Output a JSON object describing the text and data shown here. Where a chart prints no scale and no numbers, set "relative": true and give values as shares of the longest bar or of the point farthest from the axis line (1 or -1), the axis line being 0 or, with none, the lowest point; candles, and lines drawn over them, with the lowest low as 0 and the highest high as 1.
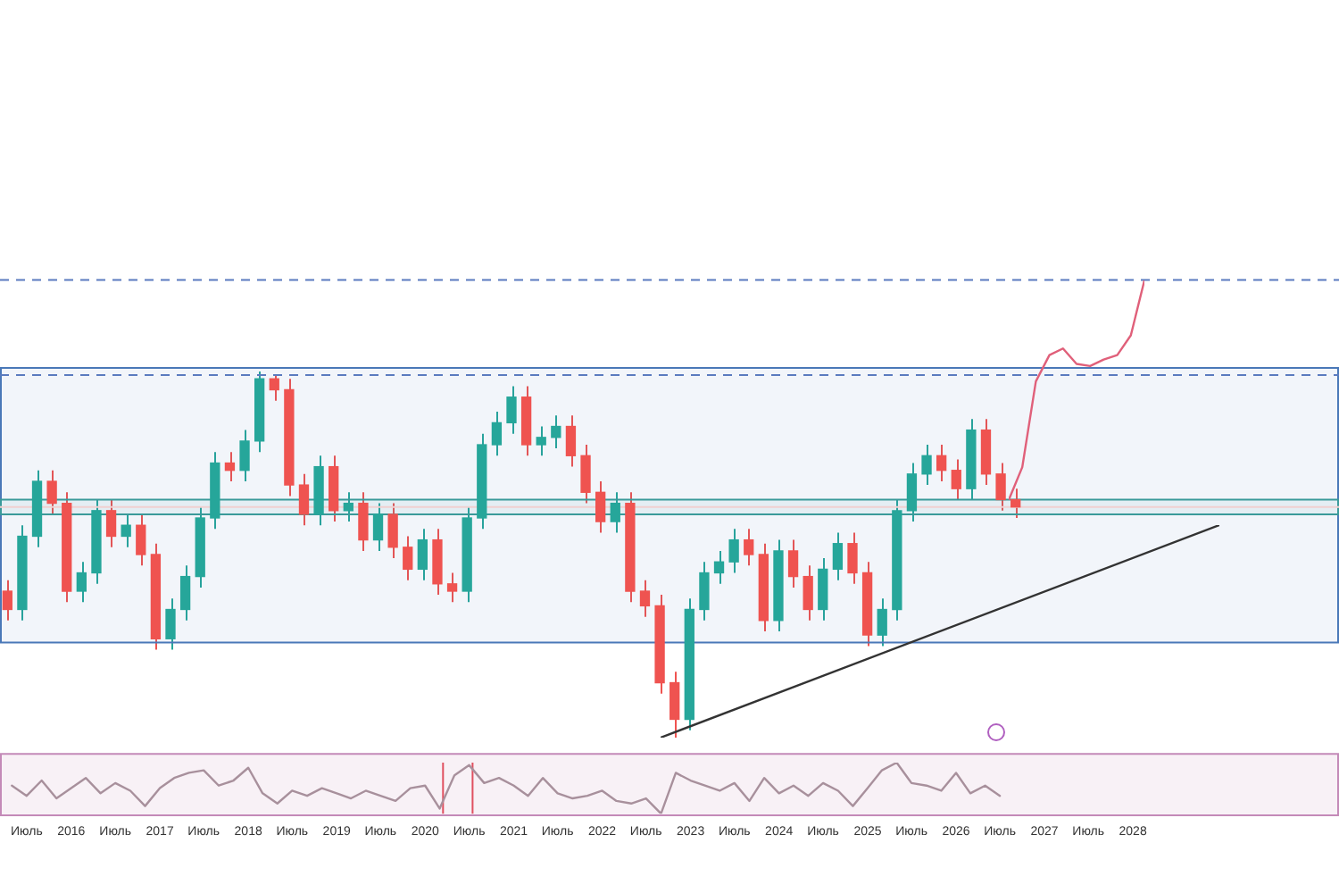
{
  "chart_data": [
    {
      "type": "candlestick",
      "relative": true,
      "tick_labels": false,
      "categories": [
        null,
        null,
        null,
        null,
        null,
        null,
        null,
        null,
        null,
        null,
        null,
        null,
        null,
        null,
        null,
        null,
        null,
        null,
        null,
        null,
        null,
        null,
        null,
        null,
        null,
        null,
        null,
        null,
        null,
        null,
        null,
        null,
        null,
        null,
        null,
        null,
        null,
        null,
        null,
        null,
        null,
        null,
        null,
        null,
        null,
        null,
        null,
        null,
        null,
        null,
        null,
        null,
        null,
        null,
        null,
        null,
        null,
        null,
        null,
        null,
        null,
        null,
        null,
        null,
        null,
        null,
        null,
        null,
        null
      ],
      "ohlc": [
        [
          0.4,
          0.43,
          0.32,
          0.35
        ],
        [
          0.35,
          0.58,
          0.32,
          0.55
        ],
        [
          0.55,
          0.73,
          0.52,
          0.7
        ],
        [
          0.7,
          0.73,
          0.61,
          0.64
        ],
        [
          0.64,
          0.67,
          0.37,
          0.4
        ],
        [
          0.4,
          0.48,
          0.37,
          0.45
        ],
        [
          0.45,
          0.65,
          0.42,
          0.62
        ],
        [
          0.62,
          0.65,
          0.52,
          0.55
        ],
        [
          0.55,
          0.61,
          0.52,
          0.58
        ],
        [
          0.58,
          0.61,
          0.47,
          0.5
        ],
        [
          0.5,
          0.53,
          0.24,
          0.27
        ],
        [
          0.27,
          0.38,
          0.24,
          0.35
        ],
        [
          0.35,
          0.47,
          0.32,
          0.44
        ],
        [
          0.44,
          0.63,
          0.41,
          0.6
        ],
        [
          0.6,
          0.78,
          0.57,
          0.75
        ],
        [
          0.75,
          0.78,
          0.7,
          0.73
        ],
        [
          0.73,
          0.84,
          0.7,
          0.81
        ],
        [
          0.81,
          1.0,
          0.78,
          0.98
        ],
        [
          0.98,
          0.99,
          0.92,
          0.95
        ],
        [
          0.95,
          0.98,
          0.66,
          0.69
        ],
        [
          0.69,
          0.72,
          0.58,
          0.61
        ],
        [
          0.61,
          0.77,
          0.58,
          0.74
        ],
        [
          0.74,
          0.77,
          0.59,
          0.62
        ],
        [
          0.62,
          0.67,
          0.59,
          0.64
        ],
        [
          0.64,
          0.67,
          0.51,
          0.54
        ],
        [
          0.54,
          0.64,
          0.51,
          0.61
        ],
        [
          0.61,
          0.64,
          0.49,
          0.52
        ],
        [
          0.52,
          0.55,
          0.43,
          0.46
        ],
        [
          0.46,
          0.57,
          0.43,
          0.54
        ],
        [
          0.54,
          0.57,
          0.39,
          0.42
        ],
        [
          0.42,
          0.45,
          0.37,
          0.4
        ],
        [
          0.4,
          0.63,
          0.37,
          0.6
        ],
        [
          0.6,
          0.83,
          0.57,
          0.8
        ],
        [
          0.8,
          0.89,
          0.77,
          0.86
        ],
        [
          0.86,
          0.96,
          0.83,
          0.93
        ],
        [
          0.93,
          0.96,
          0.77,
          0.8
        ],
        [
          0.8,
          0.85,
          0.77,
          0.82
        ],
        [
          0.82,
          0.88,
          0.79,
          0.85
        ],
        [
          0.85,
          0.88,
          0.74,
          0.77
        ],
        [
          0.77,
          0.8,
          0.64,
          0.67
        ],
        [
          0.67,
          0.7,
          0.56,
          0.59
        ],
        [
          0.59,
          0.67,
          0.56,
          0.64
        ],
        [
          0.64,
          0.67,
          0.37,
          0.4
        ],
        [
          0.4,
          0.43,
          0.33,
          0.36
        ],
        [
          0.36,
          0.39,
          0.12,
          0.15
        ],
        [
          0.15,
          0.18,
          0.0,
          0.05
        ],
        [
          0.05,
          0.38,
          0.02,
          0.35
        ],
        [
          0.35,
          0.48,
          0.32,
          0.45
        ],
        [
          0.45,
          0.51,
          0.42,
          0.48
        ],
        [
          0.48,
          0.57,
          0.45,
          0.54
        ],
        [
          0.54,
          0.57,
          0.47,
          0.5
        ],
        [
          0.5,
          0.53,
          0.29,
          0.32
        ],
        [
          0.32,
          0.54,
          0.29,
          0.51
        ],
        [
          0.51,
          0.54,
          0.41,
          0.44
        ],
        [
          0.44,
          0.47,
          0.32,
          0.35
        ],
        [
          0.35,
          0.49,
          0.32,
          0.46
        ],
        [
          0.46,
          0.56,
          0.43,
          0.53
        ],
        [
          0.53,
          0.56,
          0.42,
          0.45
        ],
        [
          0.45,
          0.48,
          0.25,
          0.28
        ],
        [
          0.28,
          0.38,
          0.25,
          0.35
        ],
        [
          0.35,
          0.65,
          0.32,
          0.62
        ],
        [
          0.62,
          0.75,
          0.59,
          0.72
        ],
        [
          0.72,
          0.8,
          0.69,
          0.77
        ],
        [
          0.77,
          0.8,
          0.7,
          0.73
        ],
        [
          0.73,
          0.76,
          0.65,
          0.68
        ],
        [
          0.68,
          0.87,
          0.65,
          0.84
        ],
        [
          0.84,
          0.87,
          0.69,
          0.72
        ],
        [
          0.72,
          0.75,
          0.62,
          0.65
        ],
        [
          0.65,
          0.68,
          0.6,
          0.63
        ]
      ],
      "colors": [
        "#ef5350",
        "#26a69a",
        "#26a69a",
        "#ef5350",
        "#ef5350",
        "#26a69a",
        "#26a69a",
        "#ef5350",
        "#26a69a",
        "#ef5350",
        "#ef5350",
        "#26a69a",
        "#26a69a",
        "#26a69a",
        "#26a69a",
        "#ef5350",
        "#26a69a",
        "#26a69a",
        "#ef5350",
        "#ef5350",
        "#ef5350",
        "#26a69a",
        "#ef5350",
        "#26a69a",
        "#ef5350",
        "#26a69a",
        "#ef5350",
        "#ef5350",
        "#26a69a",
        "#ef5350",
        "#ef5350",
        "#26a69a",
        "#26a69a",
        "#26a69a",
        "#26a69a",
        "#ef5350",
        "#26a69a",
        "#26a69a",
        "#ef5350",
        "#ef5350",
        "#ef5350",
        "#26a69a",
        "#ef5350",
        "#ef5350",
        "#ef5350",
        "#ef5350",
        "#26a69a",
        "#26a69a",
        "#26a69a",
        "#26a69a",
        "#ef5350",
        "#ef5350",
        "#26a69a",
        "#ef5350",
        "#ef5350",
        "#26a69a",
        "#26a69a",
        "#ef5350",
        "#ef5350",
        "#26a69a",
        "#26a69a",
        "#26a69a",
        "#26a69a",
        "#ef5350",
        "#ef5350",
        "#26a69a",
        "#ef5350",
        "#ef5350",
        "#ef5350"
      ],
      "ref_lines": [
        {
          "axis": "y",
          "value": 1.25,
          "color": "#5b7bbf",
          "line_style": "dashed"
        },
        {
          "axis": "y",
          "value": 0.99,
          "color": "#5b7bbf",
          "line_style": "dashed"
        },
        {
          "axis": "y",
          "value": 0.63,
          "color": "#f0d0d0"
        }
      ],
      "bands": [
        {
          "axis": "y",
          "from": 0.26,
          "to": 1.01,
          "color": "#4a78b8"
        },
        {
          "axis": "y",
          "from": 0.61,
          "to": 0.65,
          "color": "#3a9a9a"
        }
      ]
    },
    {
      "type": "line",
      "relative": true,
      "tick_labels": "x",
      "color": "#a8909c",
      "xlim": [
        "2015-04",
        "2030-05"
      ],
      "xticks": [
        {
          "value": "2015-07",
          "label": "Июль"
        },
        {
          "value": "2016-01",
          "label": "2016"
        },
        {
          "value": "2016-07",
          "label": "Июль"
        },
        {
          "value": "2017-01",
          "label": "2017"
        },
        {
          "value": "2017-07",
          "label": "Июль"
        },
        {
          "value": "2018-01",
          "label": "2018"
        },
        {
          "value": "2018-07",
          "label": "Июль"
        },
        {
          "value": "2019-01",
          "label": "2019"
        },
        {
          "value": "2019-07",
          "label": "Июль"
        },
        {
          "value": "2020-01",
          "label": "2020"
        },
        {
          "value": "2020-07",
          "label": "Июль"
        },
        {
          "value": "2021-01",
          "label": "2021"
        },
        {
          "value": "2021-07",
          "label": "Июль"
        },
        {
          "value": "2022-01",
          "label": "2022"
        },
        {
          "value": "2022-07",
          "label": "Июль"
        },
        {
          "value": "2023-01",
          "label": "2023"
        },
        {
          "value": "2023-07",
          "label": "Июль"
        },
        {
          "value": "2024-01",
          "label": "2024"
        },
        {
          "value": "2024-07",
          "label": "Июль"
        },
        {
          "value": "2025-01",
          "label": "2025"
        },
        {
          "value": "2025-07",
          "label": "Июль"
        },
        {
          "value": "2026-01",
          "label": "2026"
        },
        {
          "value": "2026-07",
          "label": "Июль"
        },
        {
          "value": "2027-01",
          "label": "2027"
        },
        {
          "value": "2027-07",
          "label": "Июль"
        },
        {
          "value": "2028-01",
          "label": "2028"
        }
      ],
      "x": [
        "2015-05",
        "2015-07",
        "2015-09",
        "2015-11",
        "2016-01",
        "2016-03",
        "2016-05",
        "2016-07",
        "2016-09",
        "2016-11",
        "2017-01",
        "2017-03",
        "2017-05",
        "2017-07",
        "2017-09",
        "2017-11",
        "2018-01",
        "2018-03",
        "2018-05",
        "2018-07",
        "2018-09",
        "2018-11",
        "2019-01",
        "2019-03",
        "2019-05",
        "2019-07",
        "2019-09",
        "2019-11",
        "2020-01",
        "2020-03",
        "2020-05",
        "2020-07",
        "2020-09",
        "2020-11",
        "2021-01",
        "2021-03",
        "2021-05",
        "2021-07",
        "2021-09",
        "2021-11",
        "2022-01",
        "2022-03",
        "2022-05",
        "2022-07",
        "2022-09",
        "2022-11",
        "2023-01",
        "2023-03",
        "2023-05",
        "2023-07",
        "2023-09",
        "2023-11",
        "2024-01",
        "2024-03",
        "2024-05",
        "2024-07",
        "2024-09",
        "2024-11",
        "2025-01",
        "2025-03",
        "2025-05",
        "2025-07",
        "2025-09",
        "2025-11",
        "2026-01",
        "2026-03",
        "2026-05",
        "2026-07"
      ],
      "values": [
        0.55,
        0.35,
        0.65,
        0.3,
        0.5,
        0.7,
        0.4,
        0.6,
        0.45,
        0.15,
        0.5,
        0.7,
        0.8,
        0.85,
        0.55,
        0.65,
        0.9,
        0.4,
        0.2,
        0.45,
        0.35,
        0.5,
        0.4,
        0.3,
        0.45,
        0.35,
        0.25,
        0.5,
        0.55,
        0.1,
        0.75,
        0.95,
        0.6,
        0.7,
        0.55,
        0.35,
        0.7,
        0.4,
        0.3,
        0.35,
        0.45,
        0.25,
        0.2,
        0.3,
        0.0,
        0.8,
        0.65,
        0.55,
        0.45,
        0.6,
        0.25,
        0.7,
        0.4,
        0.55,
        0.35,
        0.6,
        0.45,
        0.15,
        0.5,
        0.85,
        1.0,
        0.6,
        0.55,
        0.45,
        0.8,
        0.4,
        0.55,
        0.35
      ],
      "bands": [
        {
          "axis": "y",
          "from": -0.03,
          "to": 1.17,
          "color": "#c48ab8"
        }
      ],
      "ref_lines": [
        {
          "axis": "x",
          "value": "2020-03-15",
          "color": "#e05060"
        },
        {
          "axis": "x",
          "value": "2020-07-15",
          "color": "#e05060"
        }
      ]
    },
    {
      "type": "line",
      "relative": true,
      "tick_labels": false,
      "color": "#333333",
      "categories": [
        null,
        null
      ],
      "values": [
        0,
        1
      ]
    },
    {
      "type": "line",
      "relative": true,
      "tick_labels": false,
      "color": "#e0607a",
      "categories": [
        null,
        null,
        null,
        null,
        null,
        null,
        null,
        null,
        null,
        null,
        null
      ],
      "values": [
        0,
        0.15,
        0.54,
        0.66,
        0.69,
        0.62,
        0.61,
        0.64,
        0.66,
        0.75,
        1
      ]
    }
  ]
}
